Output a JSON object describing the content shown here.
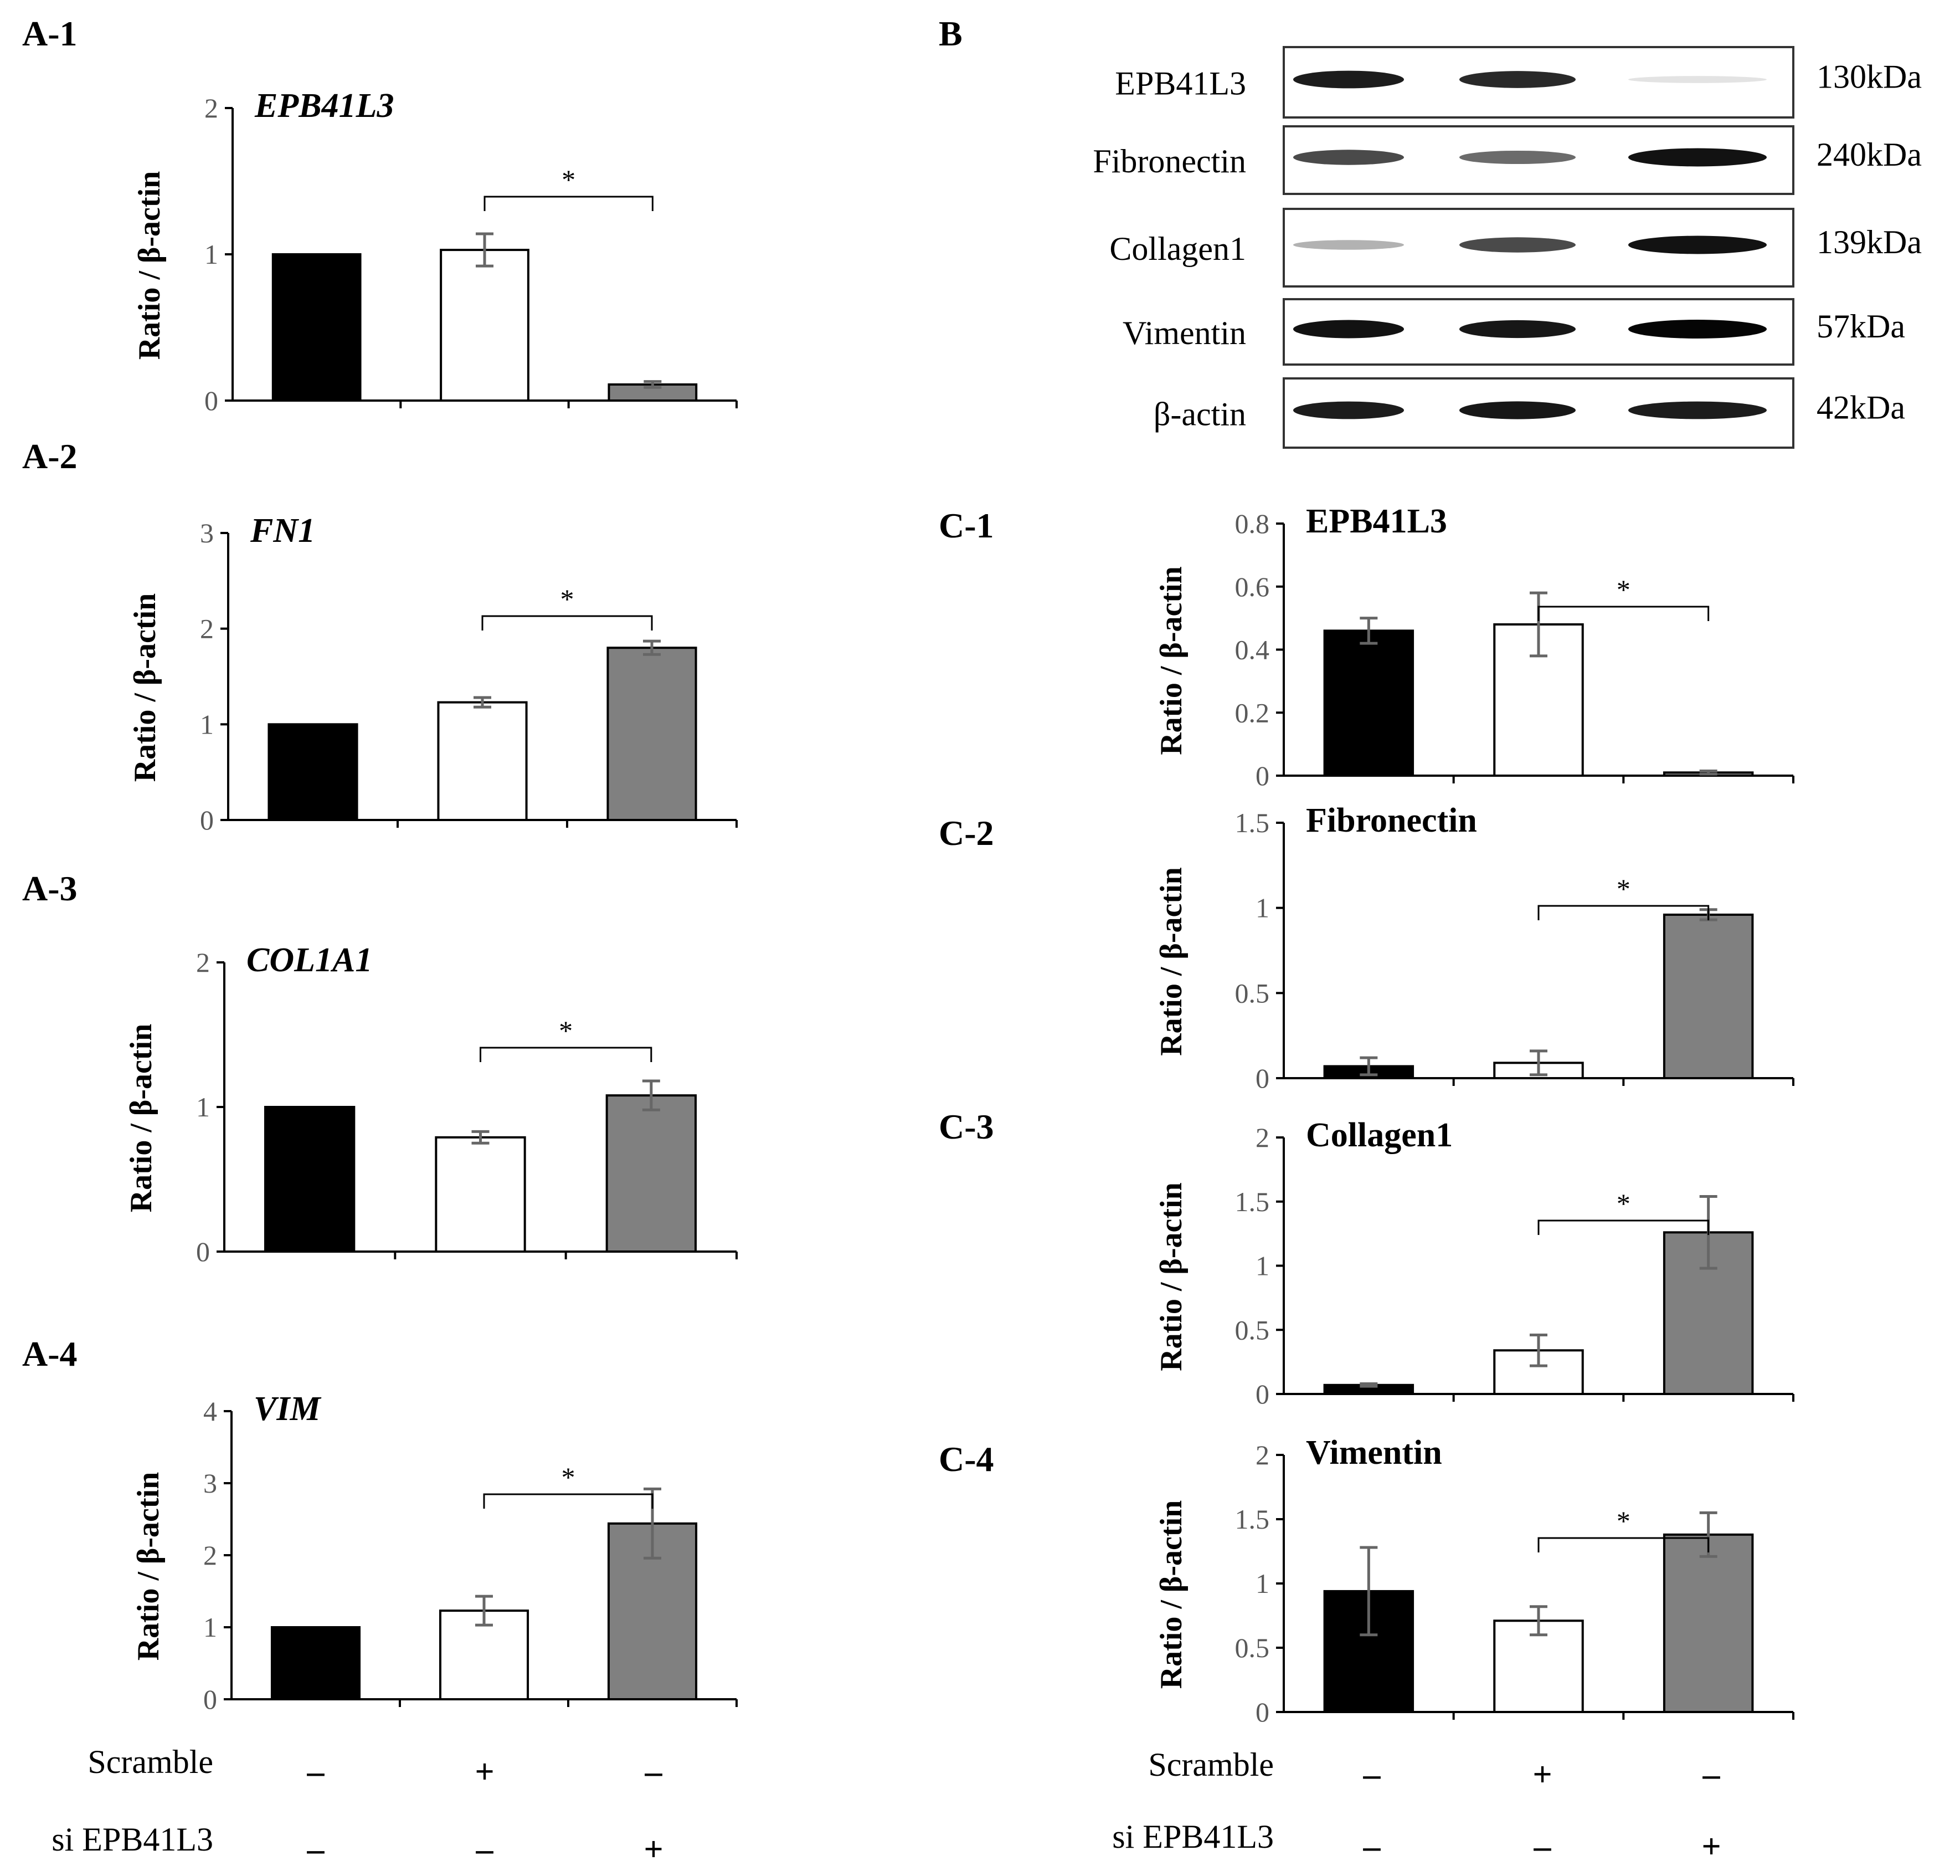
{
  "panels": {
    "a1": "A-1",
    "a2": "A-2",
    "a3": "A-3",
    "a4": "A-4",
    "b": "B",
    "c1": "C-1",
    "c2": "C-2",
    "c3": "C-3",
    "c4": "C-4"
  },
  "western_blot": {
    "rows": [
      {
        "label": "EPB41L3",
        "size": "130kDa",
        "bands": [
          0.9,
          0.85,
          0.03
        ]
      },
      {
        "label": "Fibronectin",
        "size": "240kDa",
        "bands": [
          0.7,
          0.55,
          0.95
        ]
      },
      {
        "label": "Collagen1",
        "size": "139kDa",
        "bands": [
          0.25,
          0.7,
          0.95
        ]
      },
      {
        "label": "Vimentin",
        "size": "57kDa",
        "bands": [
          0.95,
          0.92,
          1.0
        ]
      },
      {
        "label": "β-actin",
        "size": "42kDa",
        "bands": [
          0.9,
          0.92,
          0.9
        ]
      }
    ]
  },
  "treatment_rows": {
    "left": [
      {
        "label": "Scramble",
        "signs": [
          "–",
          "+",
          "–"
        ]
      },
      {
        "label": "si EPB41L3",
        "signs": [
          "–",
          "–",
          "+"
        ]
      }
    ],
    "right": [
      {
        "label": "Scramble",
        "signs": [
          "–",
          "+",
          "–"
        ]
      },
      {
        "label": "si EPB41L3",
        "signs": [
          "–",
          "–",
          "+"
        ]
      }
    ]
  },
  "colors": {
    "bar_fills": [
      "#000000",
      "#ffffff",
      "#808080"
    ],
    "error_bar": "#666666"
  },
  "chart_data": [
    {
      "type": "bar",
      "title": "EPB41L3",
      "title_style": "italic",
      "ylabel": "Ratio / β-actin",
      "ylim": [
        0,
        2
      ],
      "yticks": [
        "0",
        "1",
        "2"
      ],
      "categories": [
        "",
        "",
        ""
      ],
      "values": [
        1.0,
        1.03,
        0.11
      ],
      "errors": [
        0.0,
        0.11,
        0.02
      ],
      "significance": {
        "label": "*",
        "from": 1,
        "to": 2
      }
    },
    {
      "type": "bar",
      "title": "FN1",
      "title_style": "italic",
      "ylabel": "Ratio / β-actin",
      "ylim": [
        0,
        3
      ],
      "yticks": [
        "0",
        "1",
        "2",
        "3"
      ],
      "categories": [
        "",
        "",
        ""
      ],
      "values": [
        1.0,
        1.23,
        1.8
      ],
      "errors": [
        0.0,
        0.05,
        0.07
      ],
      "significance": {
        "label": "*",
        "from": 1,
        "to": 2
      }
    },
    {
      "type": "bar",
      "title": "COL1A1",
      "title_style": "italic",
      "ylabel": "Ratio / β-actin",
      "ylim": [
        0,
        2
      ],
      "yticks": [
        "0",
        "1",
        "2"
      ],
      "categories": [
        "",
        "",
        ""
      ],
      "values": [
        1.0,
        0.79,
        1.08
      ],
      "errors": [
        0.0,
        0.04,
        0.1
      ],
      "significance": {
        "label": "*",
        "from": 1,
        "to": 2
      }
    },
    {
      "type": "bar",
      "title": "VIM",
      "title_style": "italic",
      "ylabel": "Ratio / β-actin",
      "ylim": [
        0,
        4
      ],
      "yticks": [
        "0",
        "1",
        "2",
        "3",
        "4"
      ],
      "categories": [
        "",
        "",
        ""
      ],
      "values": [
        1.0,
        1.23,
        2.44
      ],
      "errors": [
        0.0,
        0.2,
        0.48
      ],
      "significance": {
        "label": "*",
        "from": 1,
        "to": 2
      }
    },
    {
      "type": "bar",
      "title": "EPB41L3",
      "title_style": "bold",
      "ylabel": "Ratio / β-actin",
      "ylim": [
        0,
        0.8
      ],
      "yticks": [
        "0",
        "0.2",
        "0.4",
        "0.6",
        "0.8"
      ],
      "categories": [
        "",
        "",
        ""
      ],
      "values": [
        0.46,
        0.48,
        0.01
      ],
      "errors": [
        0.04,
        0.1,
        0.005
      ],
      "significance": {
        "label": "*",
        "from": 1,
        "to": 2
      }
    },
    {
      "type": "bar",
      "title": "Fibronectin",
      "title_style": "bold",
      "ylabel": "Ratio / β-actin",
      "ylim": [
        0,
        1.5
      ],
      "yticks": [
        "0",
        "0.5",
        "1",
        "1.5"
      ],
      "categories": [
        "",
        "",
        ""
      ],
      "values": [
        0.07,
        0.09,
        0.96
      ],
      "errors": [
        0.05,
        0.07,
        0.03
      ],
      "significance": {
        "label": "*",
        "from": 1,
        "to": 2
      }
    },
    {
      "type": "bar",
      "title": "Collagen1",
      "title_style": "bold",
      "ylabel": "Ratio / β-actin",
      "ylim": [
        0,
        2
      ],
      "yticks": [
        "0",
        "0.5",
        "1",
        "1.5",
        "2"
      ],
      "categories": [
        "",
        "",
        ""
      ],
      "values": [
        0.07,
        0.34,
        1.26
      ],
      "errors": [
        0.01,
        0.12,
        0.28
      ],
      "significance": {
        "label": "*",
        "from": 1,
        "to": 2
      }
    },
    {
      "type": "bar",
      "title": "Vimentin",
      "title_style": "bold",
      "ylabel": "Ratio / β-actin",
      "ylim": [
        0,
        2
      ],
      "yticks": [
        "0",
        "0.5",
        "1",
        "1.5",
        "2"
      ],
      "categories": [
        "",
        "",
        ""
      ],
      "values": [
        0.94,
        0.71,
        1.38
      ],
      "errors": [
        0.34,
        0.11,
        0.17
      ],
      "significance": {
        "label": "*",
        "from": 1,
        "to": 2
      }
    }
  ]
}
